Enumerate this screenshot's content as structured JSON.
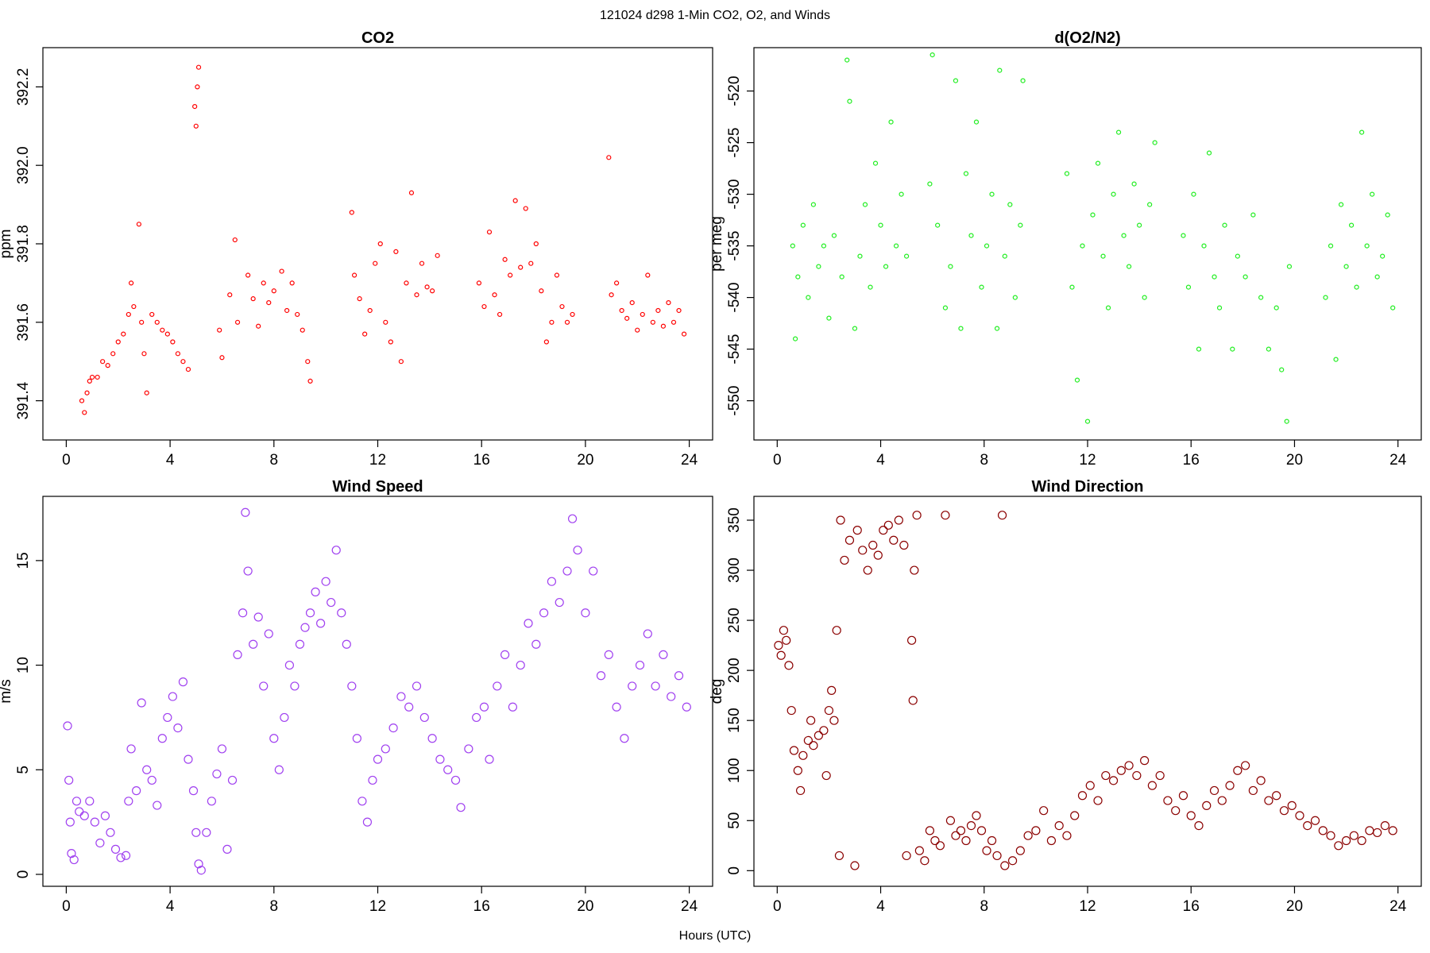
{
  "title": "121024   d298   1-Min CO2, O2, and Winds",
  "xlabel": "Hours (UTC)",
  "chart_data": [
    {
      "type": "scatter",
      "title": "CO2",
      "ylabel": "ppm",
      "color": "#ff0000",
      "xlim": [
        -0.9,
        24.9
      ],
      "xticks": [
        0,
        4,
        8,
        12,
        16,
        20,
        24
      ],
      "ylim": [
        391.3,
        392.3
      ],
      "yticks": [
        391.4,
        391.6,
        391.8,
        {
          "value": 392,
          "label": "392.0"
        },
        392.2
      ],
      "x": [
        0.6,
        0.7,
        0.8,
        0.9,
        1.0,
        1.2,
        1.4,
        1.6,
        1.8,
        2.0,
        2.2,
        2.4,
        2.5,
        2.6,
        2.8,
        2.9,
        3.0,
        3.1,
        3.3,
        3.5,
        3.7,
        3.9,
        4.1,
        4.3,
        4.5,
        4.7,
        4.95,
        5.05,
        5.1,
        5.0,
        5.9,
        6.0,
        6.3,
        6.5,
        6.6,
        7.0,
        7.2,
        7.4,
        7.6,
        7.8,
        8.0,
        8.3,
        8.5,
        8.7,
        8.9,
        9.1,
        9.3,
        9.4,
        11.0,
        11.1,
        11.3,
        11.5,
        11.7,
        11.9,
        12.1,
        12.3,
        12.5,
        12.7,
        12.9,
        13.1,
        13.3,
        13.5,
        13.7,
        13.9,
        14.1,
        14.3,
        15.9,
        16.1,
        16.3,
        16.5,
        16.7,
        16.9,
        17.1,
        17.3,
        17.5,
        17.7,
        17.9,
        18.1,
        18.3,
        18.5,
        18.7,
        18.9,
        19.1,
        19.3,
        19.5,
        20.9,
        21.0,
        21.2,
        21.4,
        21.6,
        21.8,
        22.0,
        22.2,
        22.4,
        22.6,
        22.8,
        23.0,
        23.2,
        23.4,
        23.6,
        23.8
      ],
      "values": [
        391.4,
        391.37,
        391.42,
        391.45,
        391.46,
        391.46,
        391.5,
        391.49,
        391.52,
        391.55,
        391.57,
        391.62,
        391.7,
        391.64,
        391.85,
        391.6,
        391.52,
        391.42,
        391.62,
        391.6,
        391.58,
        391.57,
        391.55,
        391.52,
        391.5,
        391.48,
        392.15,
        392.2,
        392.25,
        392.1,
        391.58,
        391.51,
        391.67,
        391.81,
        391.6,
        391.72,
        391.66,
        391.59,
        391.7,
        391.65,
        391.68,
        391.73,
        391.63,
        391.7,
        391.62,
        391.58,
        391.5,
        391.45,
        391.88,
        391.72,
        391.66,
        391.57,
        391.63,
        391.75,
        391.8,
        391.6,
        391.55,
        391.78,
        391.5,
        391.7,
        391.93,
        391.67,
        391.75,
        391.69,
        391.68,
        391.77,
        391.7,
        391.64,
        391.83,
        391.67,
        391.62,
        391.76,
        391.72,
        391.91,
        391.74,
        391.89,
        391.75,
        391.8,
        391.68,
        391.55,
        391.6,
        391.72,
        391.64,
        391.6,
        391.62,
        392.02,
        391.67,
        391.7,
        391.63,
        391.61,
        391.65,
        391.58,
        391.62,
        391.72,
        391.6,
        391.63,
        391.59,
        391.65,
        391.6,
        391.63,
        391.57
      ]
    },
    {
      "type": "scatter",
      "title": "d(O2/N2)",
      "ylabel": "per meg",
      "color": "#22ee22",
      "xlim": [
        -0.9,
        24.9
      ],
      "xticks": [
        0,
        4,
        8,
        12,
        16,
        20,
        24
      ],
      "ylim": [
        -553.8,
        -515.8
      ],
      "yticks": [
        -550,
        -545,
        -540,
        -535,
        -530,
        -525,
        -520
      ],
      "x": [
        0.6,
        0.7,
        0.8,
        1.0,
        1.2,
        1.4,
        1.6,
        1.8,
        2.0,
        2.2,
        2.5,
        2.7,
        2.8,
        3.0,
        3.2,
        3.4,
        3.6,
        3.8,
        4.0,
        4.2,
        4.4,
        4.6,
        4.8,
        5.0,
        5.9,
        6.0,
        6.2,
        6.5,
        6.7,
        6.9,
        7.1,
        7.3,
        7.5,
        7.7,
        7.9,
        8.1,
        8.3,
        8.5,
        8.6,
        8.8,
        9.0,
        9.2,
        9.4,
        9.5,
        11.2,
        11.4,
        11.6,
        11.8,
        12.0,
        12.2,
        12.4,
        12.6,
        12.8,
        13.0,
        13.2,
        13.4,
        13.6,
        13.8,
        14.0,
        14.2,
        14.4,
        14.6,
        15.7,
        15.9,
        16.1,
        16.3,
        16.5,
        16.7,
        16.9,
        17.1,
        17.3,
        17.6,
        17.8,
        18.1,
        18.4,
        18.7,
        19.0,
        19.3,
        19.5,
        19.7,
        19.8,
        21.2,
        21.4,
        21.6,
        21.8,
        22.0,
        22.2,
        22.4,
        22.6,
        22.8,
        23.0,
        23.2,
        23.4,
        23.6,
        23.8
      ],
      "values": [
        -535,
        -544,
        -538,
        -533,
        -540,
        -531,
        -537,
        -535,
        -542,
        -534,
        -538,
        -517,
        -521,
        -543,
        -536,
        -531,
        -539,
        -527,
        -533,
        -537,
        -523,
        -535,
        -530,
        -536,
        -529,
        -516.5,
        -533,
        -541,
        -537,
        -519,
        -543,
        -528,
        -534,
        -523,
        -539,
        -535,
        -530,
        -543,
        -518,
        -536,
        -531,
        -540,
        -533,
        -519,
        -528,
        -539,
        -548,
        -535,
        -552,
        -532,
        -527,
        -536,
        -541,
        -530,
        -524,
        -534,
        -537,
        -529,
        -533,
        -540,
        -531,
        -525,
        -534,
        -539,
        -530,
        -545,
        -535,
        -526,
        -538,
        -541,
        -533,
        -545,
        -536,
        -538,
        -532,
        -540,
        -545,
        -541,
        -547,
        -552,
        -537,
        -540,
        -535,
        -546,
        -531,
        -537,
        -533,
        -539,
        -524,
        -535,
        -530,
        -538,
        -536,
        -532,
        -541
      ]
    },
    {
      "type": "scatter",
      "title": "Wind Speed",
      "ylabel": "m/s",
      "color": "#a040f0",
      "xlim": [
        -0.9,
        24.9
      ],
      "xticks": [
        0,
        4,
        8,
        12,
        16,
        20,
        24
      ],
      "ylim": [
        -0.57,
        18.07
      ],
      "yticks": [
        0,
        5,
        10,
        15
      ],
      "x": [
        0.05,
        0.1,
        0.15,
        0.2,
        0.3,
        0.4,
        0.5,
        0.7,
        0.9,
        1.1,
        1.3,
        1.5,
        1.7,
        1.9,
        2.1,
        2.3,
        2.4,
        2.5,
        2.7,
        2.9,
        3.1,
        3.3,
        3.5,
        3.7,
        3.9,
        4.1,
        4.3,
        4.5,
        4.7,
        4.9,
        5.0,
        5.1,
        5.2,
        5.4,
        5.6,
        5.8,
        6.0,
        6.2,
        6.4,
        6.6,
        6.8,
        6.9,
        7.0,
        7.2,
        7.4,
        7.6,
        7.8,
        8.0,
        8.2,
        8.4,
        8.6,
        8.8,
        9.0,
        9.2,
        9.4,
        9.6,
        9.8,
        10.0,
        10.2,
        10.4,
        10.6,
        10.8,
        11.0,
        11.2,
        11.4,
        11.6,
        11.8,
        12.0,
        12.3,
        12.6,
        12.9,
        13.2,
        13.5,
        13.8,
        14.1,
        14.4,
        14.7,
        15.0,
        15.2,
        15.5,
        15.8,
        16.1,
        16.3,
        16.6,
        16.9,
        17.2,
        17.5,
        17.8,
        18.1,
        18.4,
        18.7,
        19.0,
        19.3,
        19.5,
        19.7,
        20.0,
        20.3,
        20.6,
        20.9,
        21.2,
        21.5,
        21.8,
        22.1,
        22.4,
        22.7,
        23.0,
        23.3,
        23.6,
        23.9
      ],
      "values": [
        7.1,
        4.5,
        2.5,
        1.0,
        0.7,
        3.5,
        3.0,
        2.8,
        3.5,
        2.5,
        1.5,
        2.8,
        2.0,
        1.2,
        0.8,
        0.9,
        3.5,
        6.0,
        4.0,
        8.2,
        5.0,
        4.5,
        3.3,
        6.5,
        7.5,
        8.5,
        7.0,
        9.2,
        5.5,
        4.0,
        2.0,
        0.5,
        0.2,
        2.0,
        3.5,
        4.8,
        6.0,
        1.2,
        4.5,
        10.5,
        12.5,
        17.3,
        14.5,
        11.0,
        12.3,
        9.0,
        11.5,
        6.5,
        5.0,
        7.5,
        10.0,
        9.0,
        11.0,
        11.8,
        12.5,
        13.5,
        12.0,
        14.0,
        13.0,
        15.5,
        12.5,
        11.0,
        9.0,
        6.5,
        3.5,
        2.5,
        4.5,
        5.5,
        6.0,
        7.0,
        8.5,
        8.0,
        9.0,
        7.5,
        6.5,
        5.5,
        5.0,
        4.5,
        3.2,
        6.0,
        7.5,
        8.0,
        5.5,
        9.0,
        10.5,
        8.0,
        10.0,
        12.0,
        11.0,
        12.5,
        14.0,
        13.0,
        14.5,
        17.0,
        15.5,
        12.5,
        14.5,
        9.5,
        10.5,
        8.0,
        6.5,
        9.0,
        10.0,
        11.5,
        9.0,
        10.5,
        8.5,
        9.5,
        8.0
      ]
    },
    {
      "type": "scatter",
      "title": "Wind Direction",
      "ylabel": "deg",
      "color": "#8b0000",
      "xlim": [
        -0.9,
        24.9
      ],
      "xticks": [
        0,
        4,
        8,
        12,
        16,
        20,
        24
      ],
      "ylim": [
        -15.6,
        373.8
      ],
      "yticks": [
        0,
        50,
        100,
        150,
        200,
        250,
        300,
        350
      ],
      "x": [
        0.05,
        0.15,
        0.25,
        0.35,
        0.45,
        0.55,
        0.65,
        0.8,
        0.9,
        1.0,
        1.2,
        1.3,
        1.4,
        1.6,
        1.8,
        1.9,
        2.0,
        2.1,
        2.2,
        2.3,
        2.4,
        2.45,
        2.6,
        2.8,
        3.0,
        3.1,
        3.3,
        3.5,
        3.7,
        3.9,
        4.1,
        4.3,
        4.5,
        4.7,
        4.9,
        5.0,
        5.2,
        5.25,
        5.3,
        5.4,
        5.5,
        5.7,
        5.9,
        6.1,
        6.3,
        6.5,
        6.7,
        6.9,
        7.1,
        7.3,
        7.5,
        7.7,
        7.9,
        8.1,
        8.3,
        8.5,
        8.7,
        8.8,
        9.1,
        9.4,
        9.7,
        10.0,
        10.3,
        10.6,
        10.9,
        11.2,
        11.5,
        11.8,
        12.1,
        12.4,
        12.7,
        13.0,
        13.3,
        13.6,
        13.9,
        14.2,
        14.5,
        14.8,
        15.1,
        15.4,
        15.7,
        16.0,
        16.3,
        16.6,
        16.9,
        17.2,
        17.5,
        17.8,
        18.1,
        18.4,
        18.7,
        19.0,
        19.3,
        19.6,
        19.9,
        20.2,
        20.5,
        20.8,
        21.1,
        21.4,
        21.7,
        22.0,
        22.3,
        22.6,
        22.9,
        23.2,
        23.5,
        23.8
      ],
      "values": [
        225,
        215,
        240,
        230,
        205,
        160,
        120,
        100,
        80,
        115,
        130,
        150,
        125,
        135,
        140,
        95,
        160,
        180,
        150,
        240,
        15,
        350,
        310,
        330,
        5,
        340,
        320,
        300,
        325,
        315,
        340,
        345,
        330,
        350,
        325,
        15,
        230,
        170,
        300,
        355,
        20,
        10,
        40,
        30,
        25,
        355,
        50,
        35,
        40,
        30,
        45,
        55,
        40,
        20,
        30,
        15,
        355,
        5,
        10,
        20,
        35,
        40,
        60,
        30,
        45,
        35,
        55,
        75,
        85,
        70,
        95,
        90,
        100,
        105,
        95,
        110,
        85,
        95,
        70,
        60,
        75,
        55,
        45,
        65,
        80,
        70,
        85,
        100,
        105,
        80,
        90,
        70,
        75,
        60,
        65,
        55,
        45,
        50,
        40,
        35,
        25,
        30,
        35,
        30,
        40,
        38,
        45,
        40
      ]
    }
  ]
}
